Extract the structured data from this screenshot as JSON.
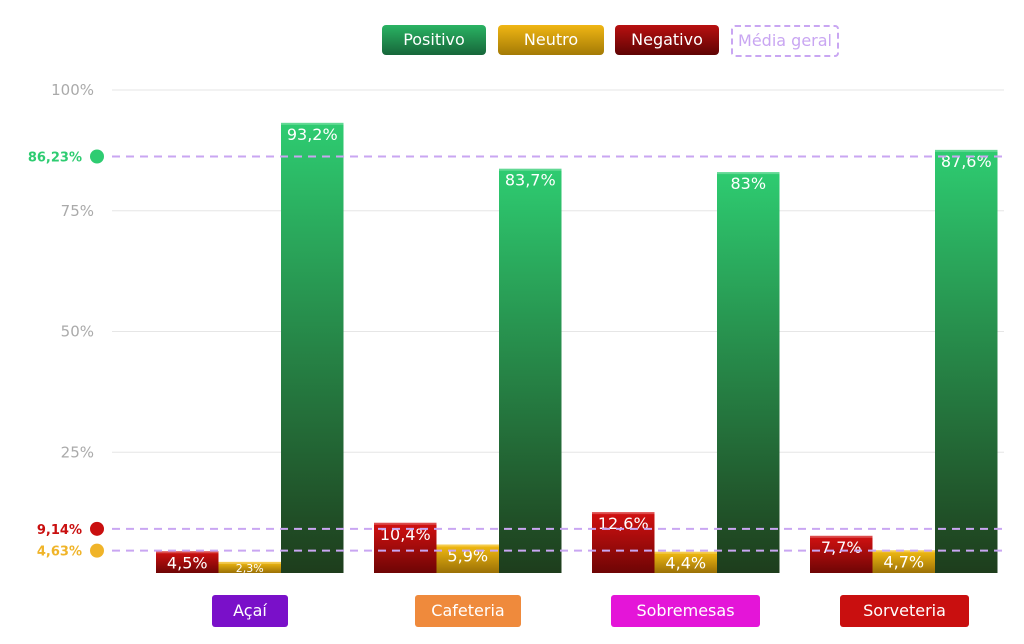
{
  "legend": {
    "items": [
      {
        "key": "positivo",
        "label": "Positivo",
        "color": "#1f8a4a"
      },
      {
        "key": "neutro",
        "label": "Neutro",
        "color": "#d9a400"
      },
      {
        "key": "negativo",
        "label": "Negativo",
        "color": "#8c0a0a"
      },
      {
        "key": "media",
        "label": "Média geral",
        "color": "#c9a6f2"
      }
    ]
  },
  "chart_data": {
    "type": "bar",
    "categories": [
      "Açaí",
      "Cafeteria",
      "Sobremesas",
      "Sorveteria"
    ],
    "category_colors": [
      "#7a10c9",
      "#ef8a3c",
      "#e415d8",
      "#c90f0f"
    ],
    "ylim": [
      0,
      100
    ],
    "yticks": [
      25,
      50,
      75,
      100
    ],
    "ytick_labels": [
      "25%",
      "50%",
      "75%",
      "100%"
    ],
    "grid": true,
    "legend_position": "top-center",
    "series": [
      {
        "name": "Negativo",
        "values": [
          4.5,
          10.4,
          12.6,
          7.7
        ],
        "labels": [
          "4,5%",
          "10,4%",
          "12,6%",
          "7,7%"
        ],
        "color_top": "#d31111",
        "color_bottom": "#6e0505"
      },
      {
        "name": "Neutro",
        "values": [
          2.3,
          5.9,
          4.4,
          4.7
        ],
        "labels": [
          "2,3%",
          "5,9%",
          "4,4%",
          "4,7%"
        ],
        "color_top": "#f5bd12",
        "color_bottom": "#9a7006"
      },
      {
        "name": "Positivo",
        "values": [
          93.2,
          83.7,
          83,
          87.6
        ],
        "labels": [
          "93,2%",
          "83,7%",
          "83%",
          "87,6%"
        ],
        "color_top": "#2ecc71",
        "color_bottom": "#1e3d1c"
      }
    ],
    "averages": [
      {
        "series": "Positivo",
        "value": 86.23,
        "label": "86,23%",
        "color": "#2ecc71"
      },
      {
        "series": "Negativo",
        "value": 9.14,
        "label": "9,14%",
        "color": "#c90f0f"
      },
      {
        "series": "Neutro",
        "value": 4.63,
        "label": "4,63%",
        "color": "#f0b429"
      }
    ],
    "average_line_color": "#c9a6f2"
  }
}
